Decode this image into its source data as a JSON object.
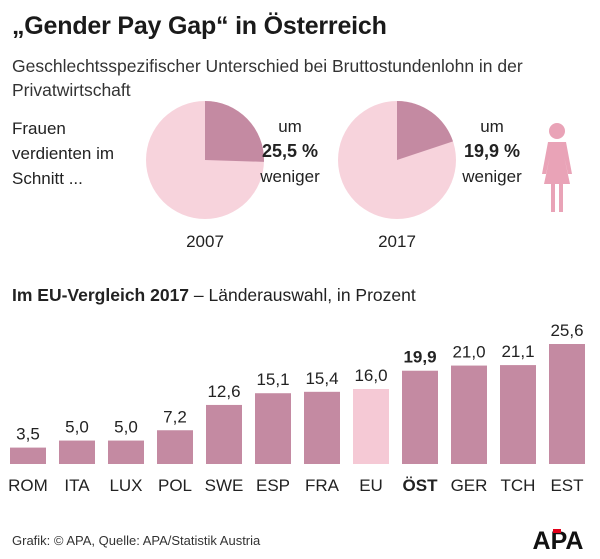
{
  "title": "„Gender Pay Gap“ in Österreich",
  "subtitle": "Geschlechtsspezifischer Unterschied bei Bruttostundenlohn in der Privatwirtschaft",
  "lead_text": "Frauen verdienten im Schnitt ...",
  "pies": [
    {
      "year": "2007",
      "prefix": "um",
      "value_label": "25,5 %",
      "suffix": "weniger",
      "value": 25.5
    },
    {
      "year": "2017",
      "prefix": "um",
      "value_label": "19,9 %",
      "suffix": "weniger",
      "value": 19.9
    }
  ],
  "section_title_bold": "Im EU-Vergleich 2017",
  "section_title_rest": " – Länderauswahl, in Prozent",
  "source": "Grafik: © APA, Quelle: APA/Statistik Austria",
  "logo_text": "APA",
  "colors": {
    "bar": "#c48aa2",
    "bar_highlight_eu": "#f5c9d5",
    "pie_light": "#f7d3dc",
    "pie_dark": "#c48aa2",
    "icon": "#e9a3b7",
    "logo_red": "#e2001a"
  },
  "chart_data": {
    "type": "bar",
    "title": "",
    "categories": [
      "ROM",
      "ITA",
      "LUX",
      "POL",
      "SWE",
      "ESP",
      "FRA",
      "EU",
      "ÖST",
      "GER",
      "TCH",
      "EST"
    ],
    "values": [
      3.5,
      5.0,
      5.0,
      7.2,
      12.6,
      15.1,
      15.4,
      16.0,
      19.9,
      21.0,
      21.1,
      25.6
    ],
    "value_labels": [
      "3,5",
      "5,0",
      "5,0",
      "7,2",
      "12,6",
      "15,1",
      "15,4",
      "16,0",
      "19,9",
      "21,0",
      "21,1",
      "25,6"
    ],
    "highlight_bold": "ÖST",
    "highlight_light": "EU",
    "ylim": [
      0,
      25.6
    ],
    "grid": false,
    "legend": "none"
  }
}
